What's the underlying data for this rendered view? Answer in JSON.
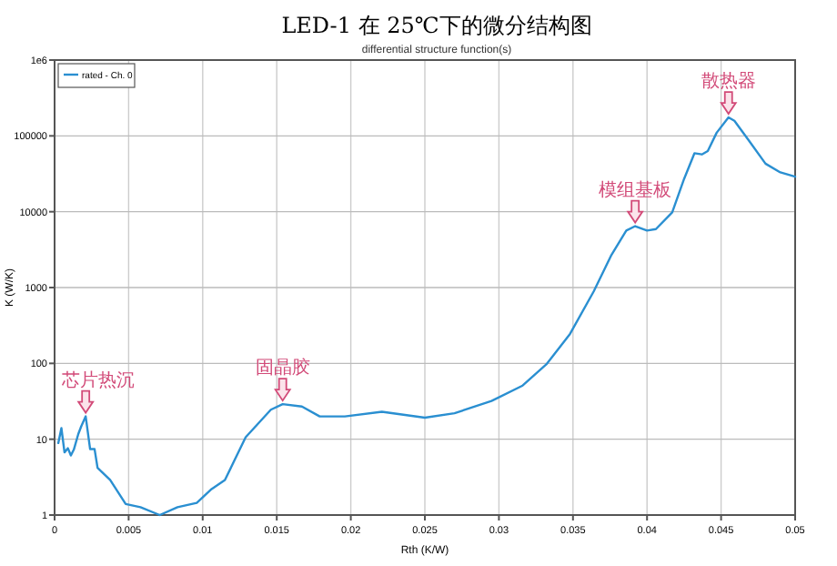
{
  "chart_data": {
    "type": "line",
    "title": "LED-1 在 25℃下的微分结构图",
    "subtitle": "differential structure function(s)",
    "xlabel": "Rth (K/W)",
    "ylabel": "K (W/K)",
    "log": "y",
    "grid": true,
    "legend": "top left",
    "xlim": [
      0,
      0.05
    ],
    "xticks": [
      0,
      0.005,
      0.01,
      0.015,
      0.02,
      0.025,
      0.03,
      0.035,
      0.04,
      0.045,
      0.05
    ],
    "ylim": [
      1,
      1000000
    ],
    "yticks": [
      1,
      10,
      100,
      1000,
      10000,
      100000,
      {
        "value": 1000000,
        "label": "1e6"
      }
    ],
    "series": [
      {
        "name": "rated - Ch. 0",
        "color": "#2a8fd1",
        "x": [
          0.00025,
          0.00046,
          0.00067,
          0.0009,
          0.0011,
          0.0013,
          0.0016,
          0.0018,
          0.0021,
          0.0024,
          0.0027,
          0.0029,
          0.00375,
          0.0048,
          0.0058,
          0.0071,
          0.0083,
          0.0096,
          0.0106,
          0.0115,
          0.0129,
          0.0146,
          0.0154,
          0.0167,
          0.0179,
          0.0196,
          0.0221,
          0.025,
          0.027,
          0.0295,
          0.0316,
          0.0332,
          0.0348,
          0.0364,
          0.0376,
          0.0386,
          0.0392,
          0.04,
          0.0406,
          0.0417,
          0.0425,
          0.0432,
          0.0437,
          0.0441,
          0.0447,
          0.0455,
          0.0459,
          0.0468,
          0.048,
          0.049,
          0.05
        ],
        "values": [
          8.9,
          14,
          6.7,
          7.6,
          6.1,
          7.3,
          11.7,
          14.8,
          20,
          7.4,
          7.4,
          4.2,
          2.9,
          1.4,
          1.27,
          1.0,
          1.27,
          1.45,
          2.2,
          2.9,
          10.6,
          24.5,
          29,
          27,
          20,
          20,
          23,
          19.2,
          22,
          32,
          51,
          97,
          245,
          890,
          2700,
          5650,
          6450,
          5650,
          5900,
          9800,
          27000,
          59000,
          57000,
          63000,
          110000,
          175000,
          158000,
          91000,
          43000,
          33000,
          29000
        ]
      }
    ],
    "annotations": [
      {
        "text": "芯片热沉",
        "x": 0.0021,
        "y": 20
      },
      {
        "text": "固晶胶",
        "x": 0.0154,
        "y": 29
      },
      {
        "text": "模组基板",
        "x": 0.0392,
        "y": 6450
      },
      {
        "text": "散热器",
        "x": 0.0455,
        "y": 175000
      }
    ]
  }
}
